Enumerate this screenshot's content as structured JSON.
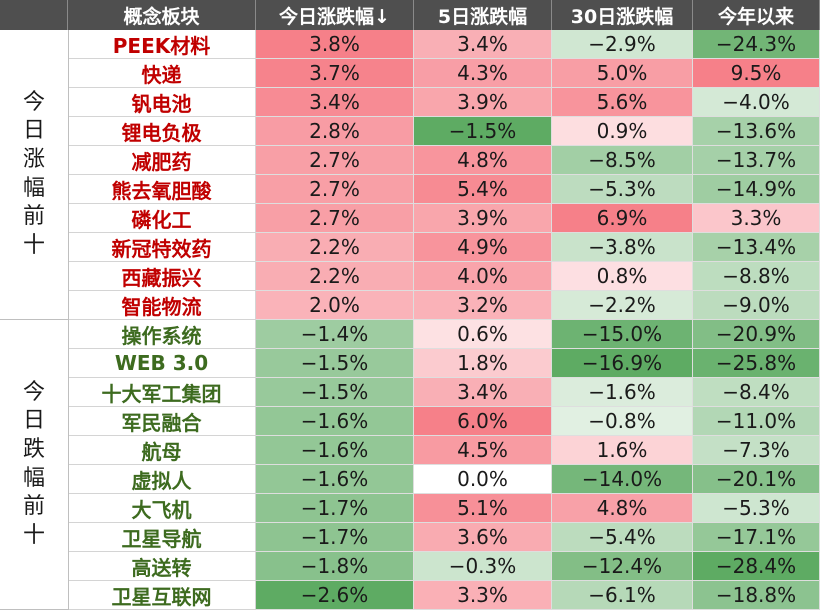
{
  "chart_data": {
    "type": "heatmap",
    "columns": [
      "概念板块",
      "今日涨跌幅↓",
      "5日涨跌幅",
      "30日涨跌幅",
      "今年以来"
    ],
    "groups": [
      {
        "label": "今日涨幅前十",
        "name_color": "#c00000",
        "rows": [
          {
            "name": "PEEK材料",
            "values": [
              3.8,
              3.4,
              -2.9,
              -24.3
            ],
            "labels": [
              "3.8%",
              "3.4%",
              "−2.9%",
              "−24.3%"
            ]
          },
          {
            "name": "快递",
            "values": [
              3.7,
              4.3,
              5.0,
              9.5
            ],
            "labels": [
              "3.7%",
              "4.3%",
              "5.0%",
              "9.5%"
            ]
          },
          {
            "name": "钒电池",
            "values": [
              3.4,
              3.9,
              5.6,
              -4.0
            ],
            "labels": [
              "3.4%",
              "3.9%",
              "5.6%",
              "−4.0%"
            ]
          },
          {
            "name": "锂电负极",
            "values": [
              2.8,
              -1.5,
              0.9,
              -13.6
            ],
            "labels": [
              "2.8%",
              "−1.5%",
              "0.9%",
              "−13.6%"
            ]
          },
          {
            "name": "减肥药",
            "values": [
              2.7,
              4.8,
              -8.5,
              -13.7
            ],
            "labels": [
              "2.7%",
              "4.8%",
              "−8.5%",
              "−13.7%"
            ]
          },
          {
            "name": "熊去氧胆酸",
            "values": [
              2.7,
              5.4,
              -5.3,
              -14.9
            ],
            "labels": [
              "2.7%",
              "5.4%",
              "−5.3%",
              "−14.9%"
            ]
          },
          {
            "name": "磷化工",
            "values": [
              2.7,
              3.9,
              6.9,
              3.3
            ],
            "labels": [
              "2.7%",
              "3.9%",
              "6.9%",
              "3.3%"
            ]
          },
          {
            "name": "新冠特效药",
            "values": [
              2.2,
              4.9,
              -3.8,
              -13.4
            ],
            "labels": [
              "2.2%",
              "4.9%",
              "−3.8%",
              "−13.4%"
            ]
          },
          {
            "name": "西藏振兴",
            "values": [
              2.2,
              4.0,
              0.8,
              -8.8
            ],
            "labels": [
              "2.2%",
              "4.0%",
              "0.8%",
              "−8.8%"
            ]
          },
          {
            "name": "智能物流",
            "values": [
              2.0,
              3.2,
              -2.2,
              -9.0
            ],
            "labels": [
              "2.0%",
              "3.2%",
              "−2.2%",
              "−9.0%"
            ]
          }
        ]
      },
      {
        "label": "今日跌幅前十",
        "name_color": "#3d6b1f",
        "rows": [
          {
            "name": "操作系统",
            "values": [
              -1.4,
              0.6,
              -15.0,
              -20.9
            ],
            "labels": [
              "−1.4%",
              "0.6%",
              "−15.0%",
              "−20.9%"
            ]
          },
          {
            "name": "WEB 3.0",
            "values": [
              -1.5,
              1.8,
              -16.9,
              -25.8
            ],
            "labels": [
              "−1.5%",
              "1.8%",
              "−16.9%",
              "−25.8%"
            ]
          },
          {
            "name": "十大军工集团",
            "values": [
              -1.5,
              3.4,
              -1.6,
              -8.4
            ],
            "labels": [
              "−1.5%",
              "3.4%",
              "−1.6%",
              "−8.4%"
            ]
          },
          {
            "name": "军民融合",
            "values": [
              -1.6,
              6.0,
              -0.8,
              -11.0
            ],
            "labels": [
              "−1.6%",
              "6.0%",
              "−0.8%",
              "−11.0%"
            ]
          },
          {
            "name": "航母",
            "values": [
              -1.6,
              4.5,
              1.6,
              -7.3
            ],
            "labels": [
              "−1.6%",
              "4.5%",
              "1.6%",
              "−7.3%"
            ]
          },
          {
            "name": "虚拟人",
            "values": [
              -1.6,
              0.0,
              -14.0,
              -20.1
            ],
            "labels": [
              "−1.6%",
              "0.0%",
              "−14.0%",
              "−20.1%"
            ]
          },
          {
            "name": "大飞机",
            "values": [
              -1.7,
              5.1,
              4.8,
              -5.3
            ],
            "labels": [
              "−1.7%",
              "5.1%",
              "4.8%",
              "−5.3%"
            ]
          },
          {
            "name": "卫星导航",
            "values": [
              -1.7,
              3.6,
              -5.4,
              -17.1
            ],
            "labels": [
              "−1.7%",
              "3.6%",
              "−5.4%",
              "−17.1%"
            ]
          },
          {
            "name": "高送转",
            "values": [
              -1.8,
              -0.3,
              -12.4,
              -28.4
            ],
            "labels": [
              "−1.8%",
              "−0.3%",
              "−12.4%",
              "−28.4%"
            ]
          },
          {
            "name": "卫星互联网",
            "values": [
              -2.6,
              3.3,
              -6.1,
              -18.8
            ],
            "labels": [
              "−2.6%",
              "3.3%",
              "−6.1%",
              "−18.8%"
            ]
          }
        ]
      }
    ],
    "colors": {
      "positive": "#f4606c",
      "negative": "#3f9b45",
      "neutral": "#ffffff",
      "header_bg": "#4f4f4f",
      "header_text": "#ffffff"
    }
  }
}
